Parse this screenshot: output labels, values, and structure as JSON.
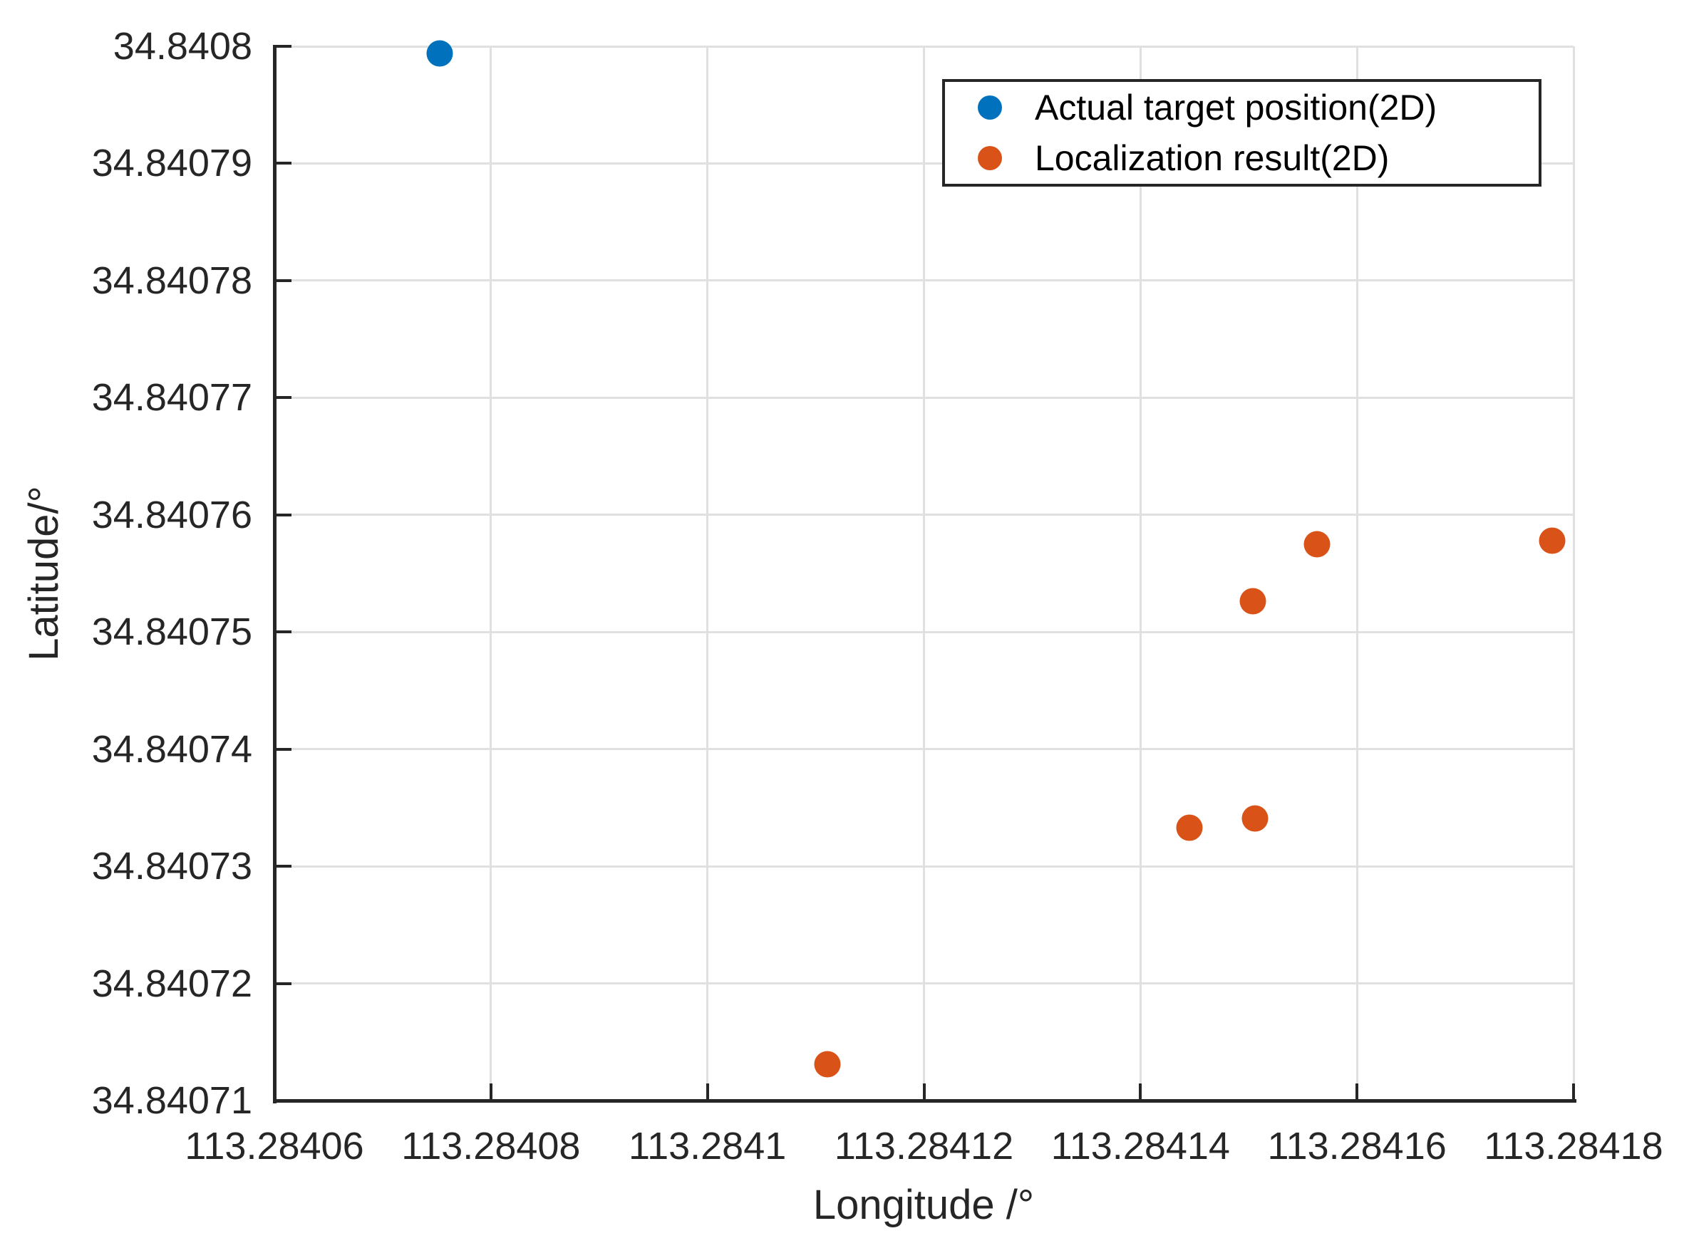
{
  "chart_data": {
    "type": "scatter",
    "title": "",
    "xlabel": "Longitude /°",
    "ylabel": "Latitude/°",
    "xlim": [
      113.28406,
      113.28418
    ],
    "ylim": [
      34.84071,
      34.8408
    ],
    "grid": true,
    "legend_position": "top-right-inside",
    "x_ticks": [
      113.28406,
      113.28408,
      113.2841,
      113.28412,
      113.28414,
      113.28416,
      113.28418
    ],
    "x_tick_labels": [
      "113.28406",
      "113.28408",
      "113.2841",
      "113.28412",
      "113.28414",
      "113.28416",
      "113.28418"
    ],
    "y_ticks": [
      34.84071,
      34.84072,
      34.84073,
      34.84074,
      34.84075,
      34.84076,
      34.84077,
      34.84078,
      34.84079,
      34.8408
    ],
    "y_tick_labels": [
      "34.84071",
      "34.84072",
      "34.84073",
      "34.84074",
      "34.84075",
      "34.84076",
      "34.84077",
      "34.84078",
      "34.84079",
      "34.8408"
    ],
    "series": [
      {
        "name": "Actual target position(2D)",
        "color": "#0072BD",
        "points": [
          {
            "x": 113.2840753,
            "y": 34.8407994
          }
        ]
      },
      {
        "name": "Localization result(2D)",
        "color": "#D95319",
        "points": [
          {
            "x": 113.2841111,
            "y": 34.8407131
          },
          {
            "x": 113.2841445,
            "y": 34.8407333
          },
          {
            "x": 113.2841506,
            "y": 34.8407341
          },
          {
            "x": 113.2841504,
            "y": 34.8407526
          },
          {
            "x": 113.2841563,
            "y": 34.8407575
          },
          {
            "x": 113.284178,
            "y": 34.8407578
          }
        ]
      }
    ]
  },
  "colors": {
    "series_actual": "#0072BD",
    "series_localization": "#D95319",
    "grid": "#e0e0e0",
    "axis": "#262626",
    "background": "#ffffff"
  }
}
